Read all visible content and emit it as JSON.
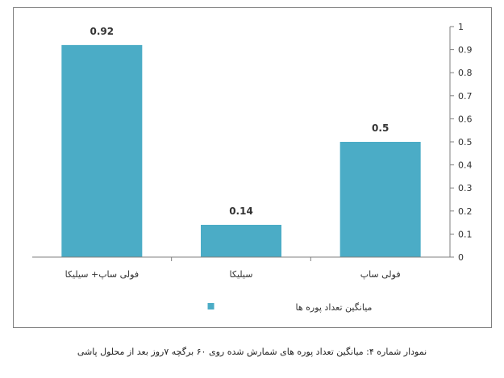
{
  "chart_data": {
    "type": "bar",
    "categories": [
      "فولی ساپ+ سیلیکا",
      "سیلیکا",
      "فولی ساپ"
    ],
    "series": [
      {
        "name": "میانگین تعداد پوره ها",
        "values": [
          0.92,
          0.14,
          0.5
        ]
      }
    ],
    "data_labels": [
      "0.92",
      "0.14",
      "0.5"
    ],
    "y_ticks": [
      "0",
      "0.1",
      "0.2",
      "0.3",
      "0.4",
      "0.5",
      "0.6",
      "0.7",
      "0.8",
      "0.9",
      "1"
    ],
    "ylim": [
      0,
      1
    ],
    "y_axis_side": "right",
    "grid": false,
    "legend_position": "bottom",
    "bar_color": "#4bacc6",
    "axis_color": "#7f7f7f"
  },
  "caption": "نمودار شماره ۴: میانگین تعداد پوره های شمارش شده روی ۶۰ برگچه ۷روز بعد از محلول پاشی"
}
